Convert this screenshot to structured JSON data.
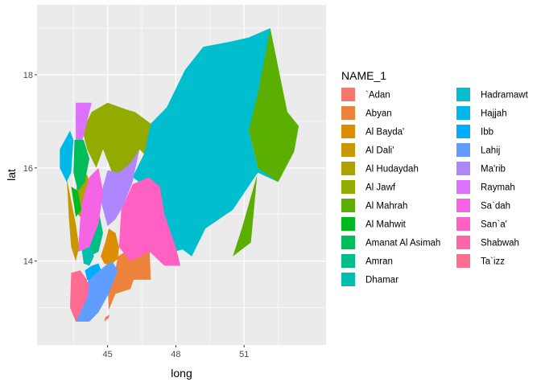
{
  "chart_data": {
    "type": "map",
    "title": "",
    "xlabel": "long",
    "ylabel": "lat",
    "xlim": [
      41.9,
      54.6
    ],
    "ylim": [
      12.2,
      19.5
    ],
    "x_ticks": [
      45,
      48,
      51
    ],
    "y_ticks": [
      14,
      16,
      18
    ],
    "x_minor": [
      43.5,
      46.5,
      49.5,
      52.5
    ],
    "y_minor": [
      13,
      15,
      17,
      19
    ],
    "grid": true,
    "legend": {
      "title": "NAME_1",
      "placement": "right",
      "columns": 2
    },
    "regions": [
      {
        "name": "`Adan",
        "color": "#F8766D",
        "points": [
          [
            44.85,
            12.7
          ],
          [
            45.05,
            12.78
          ],
          [
            45.1,
            12.85
          ],
          [
            44.9,
            12.8
          ]
        ]
      },
      {
        "name": "Abyan",
        "color": "#EC823C",
        "points": [
          [
            45.05,
            12.95
          ],
          [
            45.35,
            13.3
          ],
          [
            46.0,
            13.4
          ],
          [
            46.15,
            13.6
          ],
          [
            46.9,
            13.6
          ],
          [
            46.85,
            14.2
          ],
          [
            46.1,
            14.3
          ],
          [
            45.45,
            14.1
          ],
          [
            45.3,
            13.7
          ],
          [
            45.0,
            13.6
          ]
        ]
      },
      {
        "name": "Al Bayda'",
        "color": "#DC8D00",
        "points": [
          [
            44.7,
            14.1
          ],
          [
            44.9,
            14.4
          ],
          [
            45.05,
            14.7
          ],
          [
            45.35,
            14.6
          ],
          [
            45.5,
            14.3
          ],
          [
            45.45,
            14.05
          ],
          [
            45.1,
            13.9
          ],
          [
            44.85,
            13.95
          ]
        ]
      },
      {
        "name": "Al Dali'",
        "color": "#C79800",
        "points": [
          [
            43.2,
            15.8
          ],
          [
            43.4,
            15.3
          ],
          [
            43.6,
            14.8
          ],
          [
            43.75,
            14.3
          ],
          [
            43.6,
            14.0
          ],
          [
            43.4,
            14.3
          ],
          [
            43.3,
            14.9
          ],
          [
            43.25,
            15.4
          ]
        ]
      },
      {
        "name": "Al Hudaydah",
        "color": "#AFA100",
        "points": [
          [
            43.55,
            15.4
          ],
          [
            43.8,
            15.9
          ],
          [
            44.1,
            15.85
          ],
          [
            44.3,
            15.6
          ],
          [
            44.2,
            15.1
          ],
          [
            43.9,
            14.9
          ],
          [
            43.7,
            15.0
          ]
        ]
      },
      {
        "name": "Al Jawf",
        "color": "#93AA00",
        "points": [
          [
            44.5,
            16.0
          ],
          [
            44.8,
            16.4
          ],
          [
            45.2,
            15.9
          ],
          [
            46.0,
            15.85
          ],
          [
            46.4,
            16.4
          ],
          [
            46.8,
            16.2
          ],
          [
            46.9,
            16.95
          ],
          [
            46.2,
            17.2
          ],
          [
            45.85,
            17.25
          ],
          [
            45.0,
            17.4
          ],
          [
            44.3,
            17.2
          ],
          [
            43.9,
            16.8
          ],
          [
            44.1,
            16.4
          ]
        ]
      },
      {
        "name": "Al Mahrah",
        "color": "#5BAF00",
        "points": [
          [
            51.9,
            18.8
          ],
          [
            52.15,
            19.0
          ],
          [
            52.9,
            17.2
          ],
          [
            53.4,
            16.9
          ],
          [
            53.2,
            16.35
          ],
          [
            52.5,
            15.7
          ],
          [
            51.6,
            15.9
          ],
          [
            50.9,
            14.7
          ],
          [
            50.5,
            14.1
          ],
          [
            51.3,
            14.4
          ],
          [
            51.6,
            16.0
          ],
          [
            51.2,
            16.8
          ],
          [
            50.9,
            17.5
          ]
        ]
      },
      {
        "name": "Al Mahwit",
        "color": "#00B81F",
        "points": [
          [
            43.4,
            15.6
          ],
          [
            43.7,
            15.5
          ],
          [
            43.85,
            15.1
          ],
          [
            43.6,
            14.95
          ]
        ]
      },
      {
        "name": "Amanat Al Asimah",
        "color": "#00BC59",
        "points": [
          [
            43.55,
            16.6
          ],
          [
            43.95,
            16.6
          ],
          [
            44.2,
            16.2
          ],
          [
            44.0,
            15.7
          ],
          [
            43.7,
            15.5
          ],
          [
            43.5,
            15.9
          ]
        ]
      },
      {
        "name": "Amran",
        "color": "#00BE85",
        "points": [
          [
            43.8,
            14.7
          ],
          [
            44.0,
            15.0
          ],
          [
            44.3,
            15.2
          ],
          [
            44.6,
            15.1
          ],
          [
            44.8,
            14.6
          ],
          [
            44.6,
            14.2
          ],
          [
            44.2,
            14.1
          ],
          [
            43.95,
            14.3
          ]
        ]
      },
      {
        "name": "Dhamar",
        "color": "#00BFAC",
        "points": [
          [
            43.85,
            14.3
          ],
          [
            44.2,
            14.4
          ],
          [
            44.4,
            14.1
          ],
          [
            44.2,
            13.9
          ],
          [
            43.95,
            13.95
          ]
        ]
      },
      {
        "name": "Hadramawt",
        "color": "#00BECE",
        "points": [
          [
            46.9,
            16.95
          ],
          [
            46.6,
            16.3
          ],
          [
            46.1,
            15.8
          ],
          [
            47.2,
            15.4
          ],
          [
            47.9,
            14.2
          ],
          [
            48.3,
            14.25
          ],
          [
            48.7,
            14.1
          ],
          [
            49.3,
            14.7
          ],
          [
            50.5,
            15.1
          ],
          [
            51.6,
            15.9
          ],
          [
            52.5,
            15.7
          ],
          [
            51.6,
            16.0
          ],
          [
            51.2,
            16.8
          ],
          [
            51.6,
            17.6
          ],
          [
            52.15,
            19.0
          ],
          [
            51.2,
            18.8
          ],
          [
            50.3,
            18.7
          ],
          [
            49.2,
            18.6
          ],
          [
            48.4,
            18.1
          ],
          [
            47.6,
            17.3
          ]
        ]
      },
      {
        "name": "Hajjah",
        "color": "#00B8E7",
        "points": [
          [
            42.9,
            16.4
          ],
          [
            43.35,
            16.8
          ],
          [
            43.5,
            16.6
          ],
          [
            43.4,
            15.9
          ],
          [
            43.2,
            15.7
          ],
          [
            42.9,
            16.0
          ]
        ]
      },
      {
        "name": "Ibb",
        "color": "#00ADFA",
        "points": [
          [
            44.0,
            13.8
          ],
          [
            44.3,
            13.9
          ],
          [
            44.6,
            13.95
          ],
          [
            44.8,
            13.7
          ],
          [
            44.5,
            13.5
          ],
          [
            44.1,
            13.6
          ]
        ]
      },
      {
        "name": "Lahij",
        "color": "#619CFF",
        "points": [
          [
            43.6,
            12.7
          ],
          [
            44.2,
            12.7
          ],
          [
            44.6,
            12.9
          ],
          [
            45.05,
            13.3
          ],
          [
            45.45,
            13.8
          ],
          [
            45.2,
            14.0
          ],
          [
            44.9,
            13.9
          ],
          [
            44.4,
            13.7
          ],
          [
            44.0,
            13.5
          ],
          [
            43.8,
            13.1
          ]
        ]
      },
      {
        "name": "Ma'rib",
        "color": "#AE87FF",
        "points": [
          [
            45.0,
            14.75
          ],
          [
            45.35,
            14.9
          ],
          [
            45.7,
            15.2
          ],
          [
            46.1,
            15.7
          ],
          [
            46.4,
            16.4
          ],
          [
            46.0,
            16.1
          ],
          [
            45.5,
            15.9
          ],
          [
            45.0,
            15.95
          ],
          [
            44.8,
            15.6
          ],
          [
            44.7,
            15.3
          ]
        ]
      },
      {
        "name": "Raymah",
        "color": "#DB72FB",
        "points": [
          [
            43.6,
            16.6
          ],
          [
            43.6,
            17.4
          ],
          [
            44.3,
            17.4
          ],
          [
            44.0,
            16.8
          ],
          [
            43.9,
            16.6
          ]
        ]
      },
      {
        "name": "Sa`dah",
        "color": "#F564E3",
        "points": [
          [
            43.7,
            14.2
          ],
          [
            44.2,
            14.3
          ],
          [
            44.6,
            14.8
          ],
          [
            44.8,
            15.5
          ],
          [
            44.6,
            16.0
          ],
          [
            44.2,
            15.8
          ],
          [
            43.9,
            15.3
          ],
          [
            43.8,
            14.9
          ]
        ]
      },
      {
        "name": "San`a'",
        "color": "#FF61C3",
        "points": [
          [
            45.5,
            14.3
          ],
          [
            46.0,
            14.0
          ],
          [
            46.85,
            14.2
          ],
          [
            47.5,
            13.9
          ],
          [
            48.2,
            13.9
          ],
          [
            48.0,
            14.3
          ],
          [
            47.5,
            15.0
          ],
          [
            47.3,
            15.6
          ],
          [
            46.8,
            15.8
          ],
          [
            46.1,
            15.65
          ],
          [
            45.6,
            15.1
          ]
        ]
      },
      {
        "name": "Shabwah",
        "color": "#FF66A8",
        "points": [
          [
            43.55,
            13.5
          ],
          [
            43.75,
            13.7
          ],
          [
            44.0,
            13.6
          ],
          [
            44.2,
            13.5
          ],
          [
            44.1,
            13.2
          ],
          [
            43.8,
            13.0
          ],
          [
            43.6,
            13.1
          ]
        ]
      },
      {
        "name": "Ta`izz",
        "color": "#FF6C91",
        "points": [
          [
            43.4,
            13.75
          ],
          [
            43.8,
            13.8
          ],
          [
            44.1,
            13.6
          ],
          [
            44.0,
            13.1
          ],
          [
            43.6,
            12.7
          ],
          [
            43.35,
            13.0
          ]
        ]
      }
    ]
  }
}
